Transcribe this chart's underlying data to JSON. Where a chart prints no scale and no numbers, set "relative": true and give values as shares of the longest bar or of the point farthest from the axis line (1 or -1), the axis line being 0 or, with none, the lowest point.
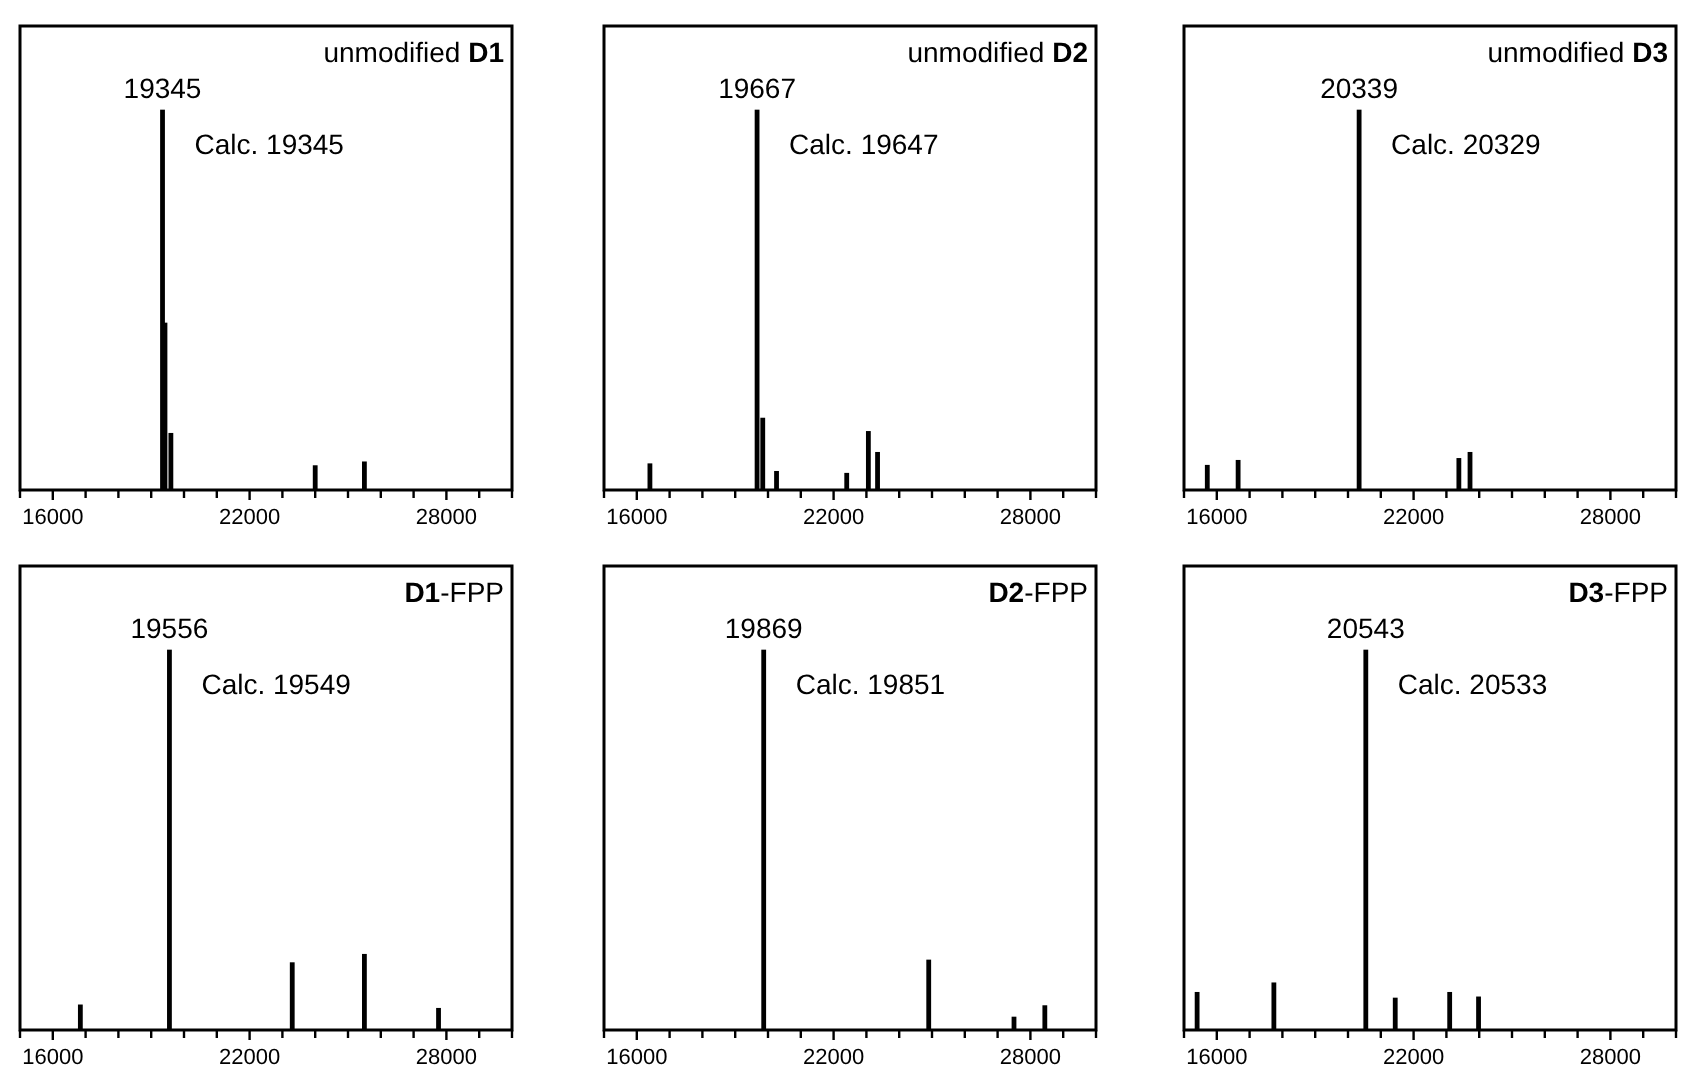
{
  "chart_data": [
    {
      "type": "bar",
      "title": "unmodified D1",
      "relative": true,
      "tick_labels": "x",
      "color": "#000000",
      "x": [
        19345,
        19420,
        19600,
        24000,
        25500
      ],
      "values": [
        1,
        0.44,
        0.15,
        0.065,
        0.075
      ],
      "xlim": [
        15000,
        30000
      ],
      "xticks": [
        {
          "value": 15000,
          "label": null
        },
        16000,
        {
          "value": 17000,
          "label": null
        },
        {
          "value": 18000,
          "label": null
        },
        {
          "value": 19000,
          "label": null
        },
        {
          "value": 20000,
          "label": null
        },
        {
          "value": 21000,
          "label": null
        },
        22000,
        {
          "value": 23000,
          "label": null
        },
        {
          "value": 24000,
          "label": null
        },
        {
          "value": 25000,
          "label": null
        },
        {
          "value": 26000,
          "label": null
        },
        {
          "value": 27000,
          "label": null
        },
        28000,
        {
          "value": 29000,
          "label": null
        },
        {
          "value": 30000,
          "label": null
        }
      ],
      "annotations": [
        {
          "text": "19345",
          "x": 19345,
          "y": 1
        },
        "Calc. 19345"
      ]
    },
    {
      "type": "bar",
      "title": "unmodified D2",
      "relative": true,
      "tick_labels": "x",
      "color": "#000000",
      "x": [
        16400,
        19667,
        19840,
        20260,
        22400,
        23060,
        23340
      ],
      "values": [
        0.07,
        1,
        0.19,
        0.05,
        0.045,
        0.155,
        0.1
      ],
      "xlim": [
        15000,
        30000
      ],
      "xticks": [
        {
          "value": 15000,
          "label": null
        },
        16000,
        {
          "value": 17000,
          "label": null
        },
        {
          "value": 18000,
          "label": null
        },
        {
          "value": 19000,
          "label": null
        },
        {
          "value": 20000,
          "label": null
        },
        {
          "value": 21000,
          "label": null
        },
        22000,
        {
          "value": 23000,
          "label": null
        },
        {
          "value": 24000,
          "label": null
        },
        {
          "value": 25000,
          "label": null
        },
        {
          "value": 26000,
          "label": null
        },
        {
          "value": 27000,
          "label": null
        },
        28000,
        {
          "value": 29000,
          "label": null
        },
        {
          "value": 30000,
          "label": null
        }
      ],
      "annotations": [
        {
          "text": "19667",
          "x": 19667,
          "y": 1
        },
        "Calc. 19647"
      ]
    },
    {
      "type": "bar",
      "title": "unmodified D3",
      "relative": true,
      "tick_labels": "x",
      "color": "#000000",
      "x": [
        15710,
        16650,
        20339,
        23380,
        23720
      ],
      "values": [
        0.066,
        0.079,
        1,
        0.084,
        0.1
      ],
      "xlim": [
        15000,
        30000
      ],
      "xticks": [
        {
          "value": 15000,
          "label": null
        },
        16000,
        {
          "value": 17000,
          "label": null
        },
        {
          "value": 18000,
          "label": null
        },
        {
          "value": 19000,
          "label": null
        },
        {
          "value": 20000,
          "label": null
        },
        {
          "value": 21000,
          "label": null
        },
        22000,
        {
          "value": 23000,
          "label": null
        },
        {
          "value": 24000,
          "label": null
        },
        {
          "value": 25000,
          "label": null
        },
        {
          "value": 26000,
          "label": null
        },
        {
          "value": 27000,
          "label": null
        },
        28000,
        {
          "value": 29000,
          "label": null
        },
        {
          "value": 30000,
          "label": null
        }
      ],
      "annotations": [
        {
          "text": "20339",
          "x": 20339,
          "y": 1
        },
        "Calc. 20329"
      ]
    },
    {
      "type": "bar",
      "title": "D1-FPP",
      "relative": true,
      "tick_labels": "x",
      "color": "#000000",
      "x": [
        16840,
        19556,
        23300,
        25500,
        27760
      ],
      "values": [
        0.067,
        1,
        0.178,
        0.2,
        0.058
      ],
      "xlim": [
        15000,
        30000
      ],
      "xticks": [
        {
          "value": 15000,
          "label": null
        },
        16000,
        {
          "value": 17000,
          "label": null
        },
        {
          "value": 18000,
          "label": null
        },
        {
          "value": 19000,
          "label": null
        },
        {
          "value": 20000,
          "label": null
        },
        {
          "value": 21000,
          "label": null
        },
        22000,
        {
          "value": 23000,
          "label": null
        },
        {
          "value": 24000,
          "label": null
        },
        {
          "value": 25000,
          "label": null
        },
        {
          "value": 26000,
          "label": null
        },
        {
          "value": 27000,
          "label": null
        },
        28000,
        {
          "value": 29000,
          "label": null
        },
        {
          "value": 30000,
          "label": null
        }
      ],
      "annotations": [
        {
          "text": "19556",
          "x": 19556,
          "y": 1
        },
        "Calc. 19549"
      ]
    },
    {
      "type": "bar",
      "title": "D2-FPP",
      "relative": true,
      "tick_labels": "x",
      "color": "#000000",
      "x": [
        19869,
        24900,
        27500,
        28440
      ],
      "values": [
        1,
        0.185,
        0.035,
        0.065
      ],
      "xlim": [
        15000,
        30000
      ],
      "xticks": [
        {
          "value": 15000,
          "label": null
        },
        16000,
        {
          "value": 17000,
          "label": null
        },
        {
          "value": 18000,
          "label": null
        },
        {
          "value": 19000,
          "label": null
        },
        {
          "value": 20000,
          "label": null
        },
        {
          "value": 21000,
          "label": null
        },
        22000,
        {
          "value": 23000,
          "label": null
        },
        {
          "value": 24000,
          "label": null
        },
        {
          "value": 25000,
          "label": null
        },
        {
          "value": 26000,
          "label": null
        },
        {
          "value": 27000,
          "label": null
        },
        28000,
        {
          "value": 29000,
          "label": null
        },
        {
          "value": 30000,
          "label": null
        }
      ],
      "annotations": [
        {
          "text": "19869",
          "x": 19869,
          "y": 1
        },
        "Calc. 19851"
      ]
    },
    {
      "type": "bar",
      "title": "D3-FPP",
      "relative": true,
      "tick_labels": "x",
      "color": "#000000",
      "x": [
        15400,
        17740,
        20543,
        21440,
        23100,
        23980
      ],
      "values": [
        0.1,
        0.125,
        1,
        0.085,
        0.1,
        0.088
      ],
      "xlim": [
        15000,
        30000
      ],
      "xticks": [
        {
          "value": 15000,
          "label": null
        },
        16000,
        {
          "value": 17000,
          "label": null
        },
        {
          "value": 18000,
          "label": null
        },
        {
          "value": 19000,
          "label": null
        },
        {
          "value": 20000,
          "label": null
        },
        {
          "value": 21000,
          "label": null
        },
        22000,
        {
          "value": 23000,
          "label": null
        },
        {
          "value": 24000,
          "label": null
        },
        {
          "value": 25000,
          "label": null
        },
        {
          "value": 26000,
          "label": null
        },
        {
          "value": 27000,
          "label": null
        },
        28000,
        {
          "value": 29000,
          "label": null
        },
        {
          "value": 30000,
          "label": null
        }
      ],
      "annotations": [
        {
          "text": "20543",
          "x": 20543,
          "y": 1
        },
        "Calc. 20533"
      ]
    }
  ]
}
